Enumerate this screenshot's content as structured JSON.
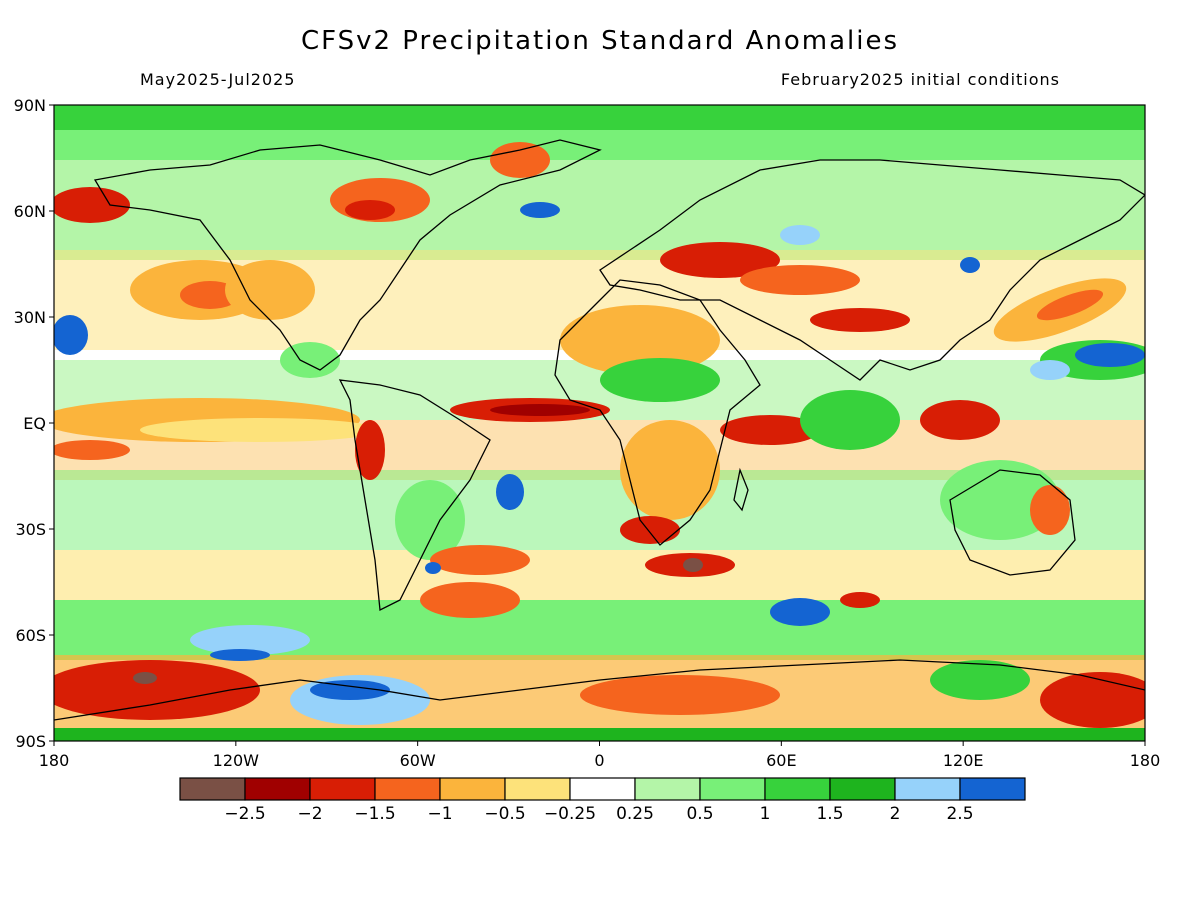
{
  "title": "CFSv2 Precipitation Standard Anomalies",
  "period": "May2025-Jul2025",
  "init": "February2025 initial conditions",
  "axes": {
    "lat_ticks": [
      "90N",
      "60N",
      "30N",
      "EQ",
      "30S",
      "60S",
      "90S"
    ],
    "lon_ticks": [
      "180",
      "120W",
      "60W",
      "0",
      "60E",
      "120E",
      "180"
    ]
  },
  "colorbar": {
    "colors": [
      "#7a5045",
      "#a00000",
      "#d81e05",
      "#f5641e",
      "#fbb43c",
      "#fde27a",
      "#ffffff",
      "#b4f5a8",
      "#78f078",
      "#37d23c",
      "#1eb41e",
      "#96d2fa",
      "#1464d2"
    ],
    "labels": [
      "−2.5",
      "−2",
      "−1.5",
      "−1",
      "−0.5",
      "−0.25",
      "0.25",
      "0.5",
      "1",
      "1.5",
      "2",
      "2.5"
    ]
  },
  "legend_colors": {
    "strong_dry": "#7a5045",
    "dry": "#d81e05",
    "moderate_dry": "#fbb43c",
    "neutral": "#ffffff",
    "wet": "#37d23c",
    "very_wet": "#1464d2"
  }
}
